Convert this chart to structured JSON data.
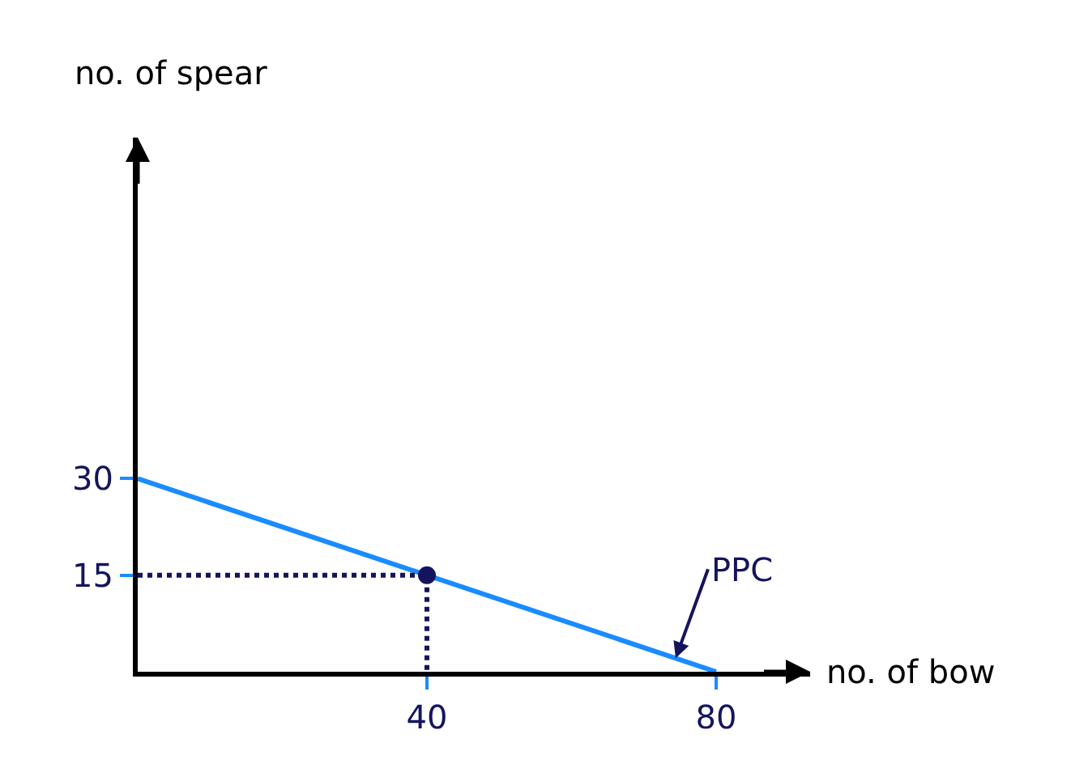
{
  "chart_data": {
    "type": "line",
    "xlabel": "no. of bow",
    "ylabel": "no. of spear",
    "xlim": [
      0,
      93
    ],
    "ylim": [
      0,
      83
    ],
    "xticks": [
      40,
      80
    ],
    "yticks": [
      15,
      30
    ],
    "legend": false,
    "series": [
      {
        "name": "PPC",
        "color": "#1a8cff",
        "x": [
          0,
          80
        ],
        "values": [
          30,
          0
        ],
        "marker": "none",
        "line_style": "solid"
      },
      {
        "type": "line",
        "color": "#14145e",
        "x": [
          0,
          40,
          40
        ],
        "values": [
          15,
          15,
          0
        ],
        "marker": "none",
        "line_style": "dotted"
      },
      {
        "type": "scatter",
        "color": "#14145e",
        "x": [
          40
        ],
        "values": [
          15
        ],
        "marker": "circle"
      }
    ]
  }
}
